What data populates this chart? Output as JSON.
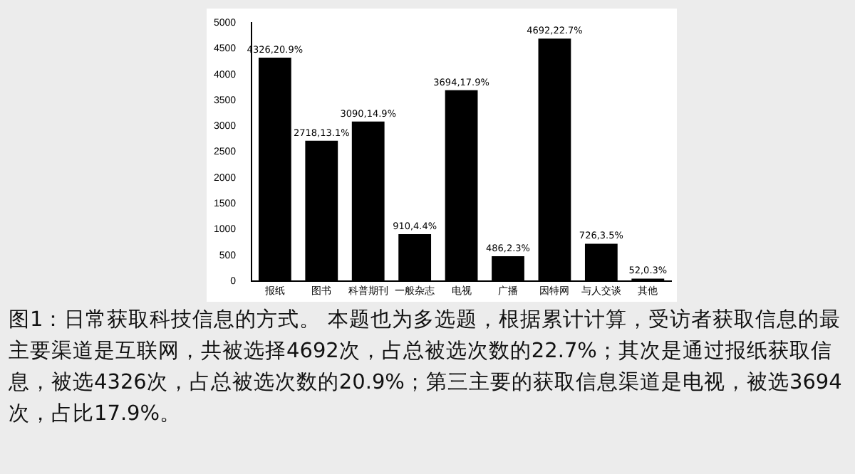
{
  "chart_data": {
    "type": "bar",
    "categories": [
      "报纸",
      "图书",
      "科普期刊",
      "一般杂志",
      "电视",
      "广播",
      "因特网",
      "与人交谈",
      "其他"
    ],
    "values": [
      4326,
      2718,
      3090,
      910,
      3694,
      486,
      4692,
      726,
      52
    ],
    "color": "#000000",
    "value_labels": [
      "4326,20.9%",
      "2718,13.1%",
      "3090,14.9%",
      "910,4.4%",
      "3694,17.9%",
      "486,2.3%",
      "4692,22.7%",
      "726,3.5%",
      "52,0.3%"
    ],
    "ylim": [
      0,
      5000
    ],
    "yticks": [
      0,
      500,
      1000,
      1500,
      2000,
      2500,
      3000,
      3500,
      4000,
      4500,
      5000
    ],
    "grid": false,
    "legend": false,
    "annotations": [
      "图1：日常获取科技信息的方式。 本题也为多选题，根据累计计算，受访者获取信息的最主要渠道是互联网，共被选择4692次，占总被选次数的22.7%；其次是通过报纸获取信息，被选4326次，占总被选次数的20.9%；第三主要的获取信息渠道是电视，被选3694次，占比17.9%。"
    ]
  }
}
